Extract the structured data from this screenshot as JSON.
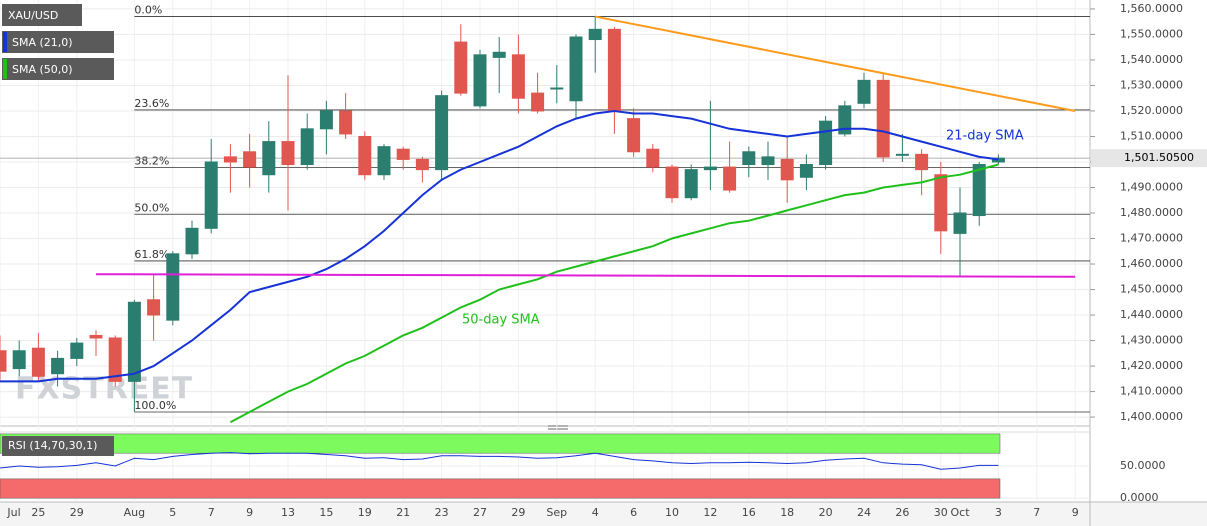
{
  "chart_data": {
    "type": "candlestick",
    "symbol": "XAU/USD",
    "watermark": "FXSTREET",
    "categories": [
      "Jul",
      null,
      "25",
      null,
      "29",
      null,
      null,
      "Aug",
      null,
      "5",
      null,
      "7",
      null,
      "9",
      null,
      "13",
      null,
      "15",
      null,
      "19",
      null,
      "21",
      null,
      "23",
      null,
      "27",
      null,
      "29",
      null,
      "Sep",
      null,
      "4",
      null,
      "6",
      null,
      "10",
      null,
      "12",
      null,
      "16",
      null,
      "18",
      null,
      "20",
      null,
      "24",
      null,
      "26",
      null,
      "30",
      "Oct",
      null,
      "3",
      null,
      "7",
      null,
      "9"
    ],
    "open": [
      1426,
      1419,
      1427,
      1417,
      1423,
      1432,
      1431,
      1414,
      1446,
      1438,
      1464,
      1474,
      1502,
      1504,
      1495,
      1508,
      1499,
      1513,
      1520,
      1510,
      1495,
      1505,
      1501,
      1497,
      1547,
      1522,
      1541,
      1542,
      1527,
      1529,
      1524,
      1548,
      1552,
      1517,
      1505,
      1498,
      1486,
      1497,
      1498,
      1499,
      1499,
      1501,
      1494,
      1499,
      1511,
      1523,
      1532,
      1503,
      1503,
      1495,
      1472,
      1479,
      1500,
      null,
      null,
      null,
      null
    ],
    "high": [
      1432,
      1430,
      1433,
      1426,
      1431,
      1434,
      1432,
      1446,
      1456,
      1465,
      1477,
      1509,
      1507,
      1511,
      1516,
      1534,
      1519,
      1524,
      1527,
      1512,
      1507,
      1506,
      1502,
      1528,
      1554,
      1544,
      1549,
      1550,
      1535,
      1538,
      1550,
      1557,
      1553,
      1521,
      1507,
      1499,
      1499,
      1524,
      1508,
      1506,
      1508,
      1510,
      1503,
      1518,
      1524,
      1535,
      1535,
      1511,
      1505,
      1500,
      1490,
      1500,
      1503,
      null,
      null,
      null,
      null
    ],
    "low": [
      1414,
      1416,
      1414,
      1412,
      1420,
      1424,
      1412,
      1402,
      1430,
      1436,
      1462,
      1472,
      1488,
      1490,
      1488,
      1481,
      1497,
      1503,
      1509,
      1493,
      1493,
      1497,
      1492,
      1493,
      1526,
      1521,
      1527,
      1519,
      1519,
      1523,
      1517,
      1535,
      1511,
      1502,
      1496,
      1484,
      1485,
      1489,
      1488,
      1494,
      1493,
      1484,
      1489,
      1497,
      1510,
      1521,
      1500,
      1500,
      1487,
      1464,
      1455,
      1475,
      1499,
      null,
      null,
      null,
      null
    ],
    "close": [
      1418,
      1426,
      1416,
      1423,
      1429,
      1431,
      1414,
      1445,
      1440,
      1464,
      1474,
      1500,
      1500,
      1498,
      1508,
      1499,
      1513,
      1520,
      1511,
      1495,
      1506,
      1501,
      1497,
      1526,
      1527,
      1542,
      1543,
      1525,
      1520,
      1529,
      1549,
      1552,
      1520,
      1504,
      1498,
      1486,
      1497,
      1498,
      1489,
      1504,
      1502,
      1493,
      1499,
      1516,
      1522,
      1532,
      1502,
      1503,
      1497,
      1473,
      1480,
      1499,
      1501.505,
      null,
      null,
      null,
      null
    ],
    "up_color": "#2b7e6f",
    "down_color": "#e0574f",
    "series": [
      {
        "name": "SMA (21,0)",
        "color": "#1533d6",
        "values": [
          1414,
          1414,
          1414,
          1415,
          1415,
          1415,
          1416,
          1417,
          1420,
          1425,
          1430,
          1436,
          1442,
          1449,
          1451,
          1453,
          1455,
          1458,
          1462,
          1467,
          1473,
          1480,
          1487,
          1493,
          1497,
          1500,
          1503,
          1506,
          1510,
          1514,
          1517,
          1519,
          1520,
          1519,
          1519,
          1518,
          1517,
          1515,
          1513,
          1512,
          1511,
          1510,
          1511,
          1512,
          1513,
          1513,
          1512,
          1510,
          1508,
          1506,
          1504,
          1502,
          1501,
          null,
          null,
          null,
          null
        ]
      },
      {
        "name": "SMA (50,0)",
        "color": "#20c01a",
        "values": [
          null,
          null,
          null,
          null,
          null,
          null,
          null,
          null,
          null,
          null,
          null,
          null,
          1398,
          1402,
          1406,
          1410,
          1413,
          1417,
          1421,
          1424,
          1428,
          1432,
          1435,
          1439,
          1443,
          1446,
          1450,
          1452,
          1454,
          1457,
          1459,
          1461,
          1463,
          1465,
          1467,
          1470,
          1472,
          1474,
          1476,
          1477,
          1479,
          1481,
          1483,
          1485,
          1487,
          1488,
          1490,
          1491,
          1492,
          1494,
          1495,
          1497,
          1499,
          null,
          null,
          null,
          null
        ]
      }
    ],
    "last_price": {
      "value": 1501.505,
      "label": "1,501.50500"
    },
    "fib_levels": [
      {
        "label": "0.0%",
        "value": 1557
      },
      {
        "label": "23.6%",
        "value": 1520.4
      },
      {
        "label": "38.2%",
        "value": 1497.8
      },
      {
        "label": "50.0%",
        "value": 1479.5
      },
      {
        "label": "61.8%",
        "value": 1461.2
      },
      {
        "label": "100.0%",
        "value": 1402
      }
    ],
    "trend_lines": [
      {
        "color": "#ff9a1a",
        "points": [
          [
            31,
            1557
          ],
          [
            56,
            1520
          ]
        ]
      },
      {
        "color": "#e020d8",
        "points": [
          [
            5,
            1456
          ],
          [
            56,
            1455
          ]
        ]
      }
    ],
    "annotations": [
      {
        "text": "21-day SMA",
        "color": "#1533d6"
      },
      {
        "text": "50-day SMA",
        "color": "#20c01a"
      }
    ],
    "ylim": [
      1396.5,
      1563.5
    ],
    "yticks": [
      {
        "value": 1400,
        "label": "1,400.0000"
      },
      {
        "value": 1410,
        "label": "1,410.0000"
      },
      {
        "value": 1420,
        "label": "1,420.0000"
      },
      {
        "value": 1430,
        "label": "1,430.0000"
      },
      {
        "value": 1440,
        "label": "1,440.0000"
      },
      {
        "value": 1450,
        "label": "1,450.0000"
      },
      {
        "value": 1460,
        "label": "1,460.0000"
      },
      {
        "value": 1470,
        "label": "1,470.0000"
      },
      {
        "value": 1480,
        "label": "1,480.0000"
      },
      {
        "value": 1490,
        "label": "1,490.0000"
      },
      {
        "value": 1500,
        "label": "1,500.0000"
      },
      {
        "value": 1510,
        "label": "1,510.0000"
      },
      {
        "value": 1520,
        "label": "1,520.0000"
      },
      {
        "value": 1530,
        "label": "1,530.0000"
      },
      {
        "value": 1540,
        "label": "1,540.0000"
      },
      {
        "value": 1550,
        "label": "1,550.0000"
      },
      {
        "value": 1560,
        "label": "1,560.0000"
      }
    ],
    "grid": true,
    "rsi": {
      "name": "RSI (14,70,30,1)",
      "color": "#1533d6",
      "values": [
        47,
        50,
        48,
        49,
        51,
        55,
        50,
        62,
        60,
        65,
        68,
        70,
        71,
        69,
        70,
        70,
        70,
        68,
        66,
        62,
        63,
        60,
        61,
        66,
        66,
        65,
        65,
        64,
        62,
        63,
        66,
        70,
        65,
        60,
        58,
        55,
        54,
        55,
        55,
        56,
        55,
        54,
        55,
        59,
        61,
        62,
        55,
        53,
        52,
        45,
        47,
        51,
        51,
        null,
        null,
        null,
        null
      ],
      "ylim": [
        -6,
        103
      ],
      "yticks": [
        {
          "value": 0,
          "label": "0.0000"
        },
        {
          "value": 50,
          "label": "50.0000"
        }
      ],
      "bands": [
        {
          "from": 70,
          "to": 100,
          "color": "#7dfa5e"
        },
        {
          "from": 0,
          "to": 30,
          "color": "#f56a6a"
        }
      ]
    }
  }
}
